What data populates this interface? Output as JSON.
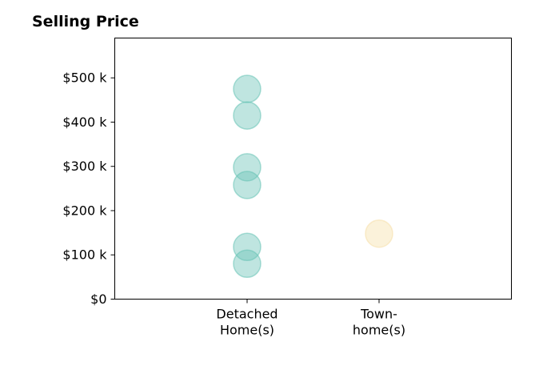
{
  "chart_data": {
    "type": "scatter",
    "title": "Selling Price",
    "xlabel": "",
    "ylabel": "",
    "categories": [
      [
        "Detached",
        "Home(s)"
      ],
      [
        "Town-",
        "home(s)"
      ]
    ],
    "ylim": [
      0,
      590000
    ],
    "yticks": [
      {
        "value": 0,
        "label": "$0"
      },
      {
        "value": 100000,
        "label": "$100 k"
      },
      {
        "value": 200000,
        "label": "$200 k"
      },
      {
        "value": 300000,
        "label": "$300 k"
      },
      {
        "value": 400000,
        "label": "$400 k"
      },
      {
        "value": 500000,
        "label": "$500 k"
      }
    ],
    "grid": false,
    "series": [
      {
        "category_index": 0,
        "color": "#66c2b4",
        "values": [
          475000,
          415000,
          298000,
          258000,
          118000,
          80000
        ]
      },
      {
        "category_index": 1,
        "color": "#f6dfa8",
        "values": [
          148000
        ]
      }
    ]
  }
}
